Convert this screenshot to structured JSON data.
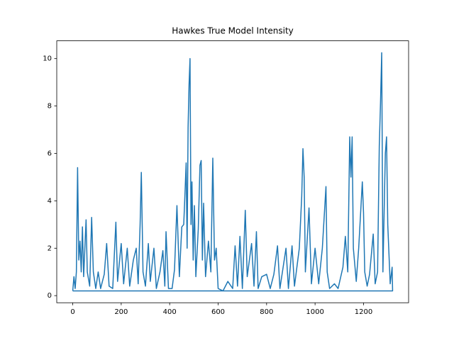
{
  "chart_data": {
    "type": "line",
    "title": "Hawkes True Model Intensity",
    "x": [
      0,
      5,
      10,
      15,
      20,
      25,
      30,
      35,
      40,
      45,
      55,
      60,
      70,
      78,
      85,
      95,
      105,
      115,
      130,
      140,
      150,
      165,
      178,
      185,
      200,
      210,
      225,
      235,
      250,
      262,
      270,
      278,
      283,
      290,
      300,
      312,
      320,
      335,
      345,
      360,
      372,
      380,
      385,
      395,
      410,
      420,
      430,
      440,
      450,
      458,
      462,
      468,
      472,
      476,
      480,
      484,
      488,
      492,
      497,
      502,
      508,
      518,
      525,
      530,
      535,
      540,
      548,
      560,
      570,
      578,
      585,
      592,
      600,
      620,
      640,
      660,
      670,
      680,
      690,
      700,
      712,
      720,
      738,
      748,
      758,
      765,
      780,
      800,
      815,
      830,
      845,
      855,
      880,
      890,
      905,
      915,
      935,
      945,
      950,
      955,
      960,
      975,
      985,
      1000,
      1015,
      1030,
      1045,
      1050,
      1060,
      1080,
      1095,
      1115,
      1125,
      1135,
      1143,
      1148,
      1153,
      1158,
      1170,
      1180,
      1195,
      1200,
      1205,
      1215,
      1225,
      1240,
      1248,
      1258,
      1265,
      1270,
      1275,
      1280,
      1290,
      1295,
      1300,
      1310,
      1318,
      1320,
      0
    ],
    "series": [
      {
        "color": "#1f77b4",
        "values": [
          0.2,
          0.8,
          0.3,
          1.0,
          5.4,
          1.5,
          2.3,
          1.0,
          2.9,
          0.8,
          3.2,
          1.0,
          0.4,
          3.3,
          1.0,
          0.3,
          1.0,
          0.3,
          0.9,
          2.2,
          0.4,
          0.3,
          3.1,
          0.6,
          2.2,
          0.5,
          2.0,
          0.4,
          1.5,
          2.0,
          0.5,
          3.0,
          5.2,
          1.0,
          0.4,
          2.2,
          0.6,
          2.0,
          0.3,
          1.0,
          1.9,
          0.4,
          2.7,
          0.3,
          0.3,
          1.1,
          3.8,
          0.8,
          2.9,
          3.0,
          4.0,
          5.6,
          2.0,
          7.1,
          8.9,
          10.0,
          3.0,
          4.8,
          1.5,
          3.8,
          0.8,
          2.8,
          5.5,
          5.7,
          1.5,
          3.9,
          0.8,
          2.3,
          1.0,
          5.8,
          1.5,
          2.0,
          0.3,
          0.2,
          0.6,
          0.3,
          2.1,
          0.4,
          2.5,
          0.3,
          3.6,
          0.8,
          2.2,
          0.4,
          2.7,
          0.3,
          0.8,
          0.9,
          0.3,
          0.9,
          2.1,
          0.3,
          2.0,
          0.3,
          2.1,
          0.4,
          2.0,
          4.2,
          6.2,
          5.0,
          1.0,
          3.7,
          0.5,
          2.0,
          0.5,
          2.0,
          4.6,
          1.0,
          0.3,
          0.5,
          0.3,
          1.2,
          2.5,
          1.0,
          6.7,
          5.0,
          6.7,
          2.0,
          0.6,
          2.0,
          4.8,
          3.5,
          1.0,
          0.4,
          0.9,
          2.6,
          0.5,
          1.0,
          6.3,
          8.1,
          10.25,
          1.0,
          6.0,
          6.7,
          3.0,
          0.5,
          1.2,
          0.2,
          0.2
        ]
      }
    ],
    "xlim": [
      -66,
      1386
    ],
    "ylim": [
      -0.3,
      10.75
    ],
    "xticks": [
      0,
      200,
      400,
      600,
      800,
      1000,
      1200
    ],
    "yticks": [
      0,
      2,
      4,
      6,
      8,
      10
    ]
  }
}
